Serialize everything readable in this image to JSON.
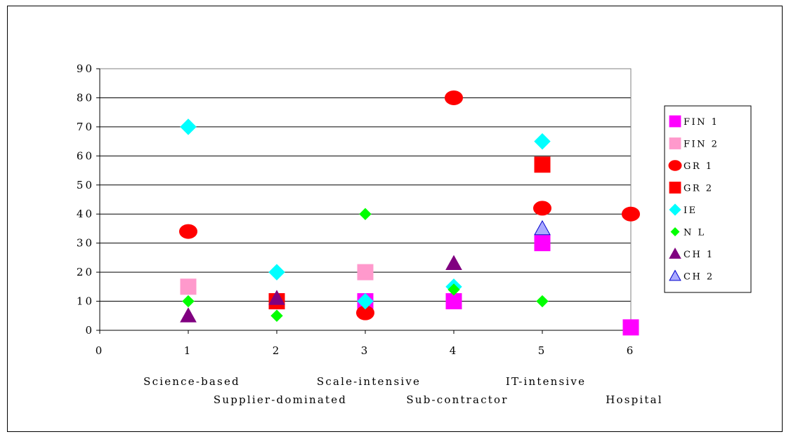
{
  "chart_data": {
    "type": "scatter",
    "title": "",
    "xlabel": "",
    "ylabel": "",
    "xlim": [
      0,
      6
    ],
    "ylim": [
      0,
      90
    ],
    "x_ticks": [
      "0",
      "1",
      "2",
      "3",
      "4",
      "5",
      "6"
    ],
    "y_ticks": [
      "0",
      "10",
      "20",
      "30",
      "40",
      "50",
      "60",
      "70",
      "80",
      "90"
    ],
    "grid": "horizontal",
    "legend_position": "right",
    "category_labels": [
      {
        "x": 1,
        "label": "Science-based",
        "row": 1
      },
      {
        "x": 2,
        "label": "Supplier-dominated",
        "row": 2
      },
      {
        "x": 3,
        "label": "Scale-intensive",
        "row": 1
      },
      {
        "x": 4,
        "label": "Sub-contractor",
        "row": 2
      },
      {
        "x": 5,
        "label": "IT-intensive",
        "row": 1
      },
      {
        "x": 6,
        "label": "Hospital",
        "row": 2
      }
    ],
    "series": [
      {
        "name": "FIN 1",
        "marker": "square",
        "color": "#ff00ff",
        "stroke": "#ff00ff",
        "points": [
          {
            "x": 2,
            "y": 10
          },
          {
            "x": 3,
            "y": 10
          },
          {
            "x": 4,
            "y": 10
          },
          {
            "x": 5,
            "y": 30
          },
          {
            "x": 6,
            "y": 1
          }
        ]
      },
      {
        "name": "FIN 2",
        "marker": "square",
        "color": "#ff99cc",
        "stroke": "#ff99cc",
        "points": [
          {
            "x": 1,
            "y": 15
          },
          {
            "x": 3,
            "y": 20
          }
        ]
      },
      {
        "name": "GR 1",
        "marker": "circle",
        "color": "#ff0000",
        "stroke": "#ff0000",
        "points": [
          {
            "x": 1,
            "y": 34
          },
          {
            "x": 3,
            "y": 6
          },
          {
            "x": 4,
            "y": 80
          },
          {
            "x": 5,
            "y": 42
          },
          {
            "x": 6,
            "y": 40
          }
        ]
      },
      {
        "name": "GR 2",
        "marker": "square",
        "color": "#ff0000",
        "stroke": "#ff0000",
        "points": [
          {
            "x": 2,
            "y": 10
          },
          {
            "x": 5,
            "y": 57
          }
        ]
      },
      {
        "name": "IE",
        "marker": "diamond",
        "color": "#00ffff",
        "stroke": "#00ffff",
        "points": [
          {
            "x": 1,
            "y": 70
          },
          {
            "x": 2,
            "y": 20
          },
          {
            "x": 3,
            "y": 10
          },
          {
            "x": 4,
            "y": 15
          },
          {
            "x": 5,
            "y": 65
          }
        ]
      },
      {
        "name": "N L",
        "marker": "diamond-small",
        "color": "#00ff00",
        "stroke": "#00ff00",
        "points": [
          {
            "x": 1,
            "y": 10
          },
          {
            "x": 2,
            "y": 5
          },
          {
            "x": 3,
            "y": 40
          },
          {
            "x": 4,
            "y": 14
          },
          {
            "x": 5,
            "y": 10
          }
        ]
      },
      {
        "name": "CH 1",
        "marker": "triangle",
        "color": "#800080",
        "stroke": "#800080",
        "points": [
          {
            "x": 1,
            "y": 5
          },
          {
            "x": 2,
            "y": 11
          },
          {
            "x": 4,
            "y": 23
          }
        ]
      },
      {
        "name": "CH 2",
        "marker": "triangle",
        "color": "#aaaaff",
        "stroke": "#0000cc",
        "points": [
          {
            "x": 5,
            "y": 35
          }
        ]
      }
    ]
  }
}
